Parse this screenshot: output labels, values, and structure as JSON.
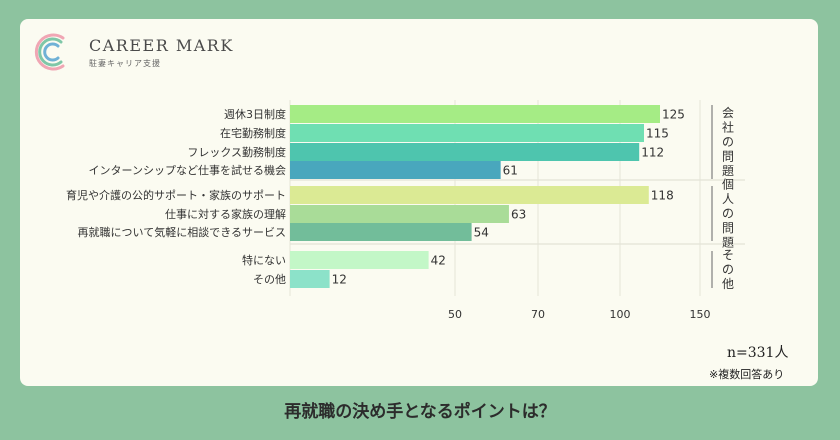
{
  "brand": {
    "name": "CAREER MARK",
    "tagline": "駐妻キャリア支援",
    "logo_colors": [
      "#f0a6b4",
      "#f4c26b",
      "#7fc7a8",
      "#6fb1d6",
      "#b7a3d6"
    ]
  },
  "footer": {
    "title": "再就職の決め手となるポイントは？"
  },
  "chart_data": {
    "type": "bar",
    "orientation": "horizontal",
    "title": "",
    "xlabel": "",
    "ylabel": "",
    "categories": [
      "週休3日制度",
      "在宅勤務制度",
      "フレックス勤務制度",
      "インターンシップなど仕事を試せる機会",
      "育児や介護の公的サポート・家族のサポート",
      "仕事に対する家族の理解",
      "再就職について気軽に相談できるサービス",
      "特にない",
      "その他"
    ],
    "values": [
      125,
      115,
      112,
      61,
      118,
      63,
      54,
      42,
      12
    ],
    "colors": [
      "#a5ec85",
      "#6fdfb2",
      "#4ec5ae",
      "#49a7bd",
      "#dbea94",
      "#a9dc98",
      "#72bd9a",
      "#c3f7c7",
      "#8ce2c9"
    ],
    "groups": [
      {
        "label": "会社の問題",
        "start": 0,
        "end": 3
      },
      {
        "label": "個人の問題",
        "start": 4,
        "end": 6
      },
      {
        "label": "その他",
        "start": 7,
        "end": 8
      }
    ],
    "xticks": [
      50,
      70,
      100,
      150
    ],
    "grid": true,
    "n_label": "n=331人",
    "note": "※複数回答あり"
  }
}
